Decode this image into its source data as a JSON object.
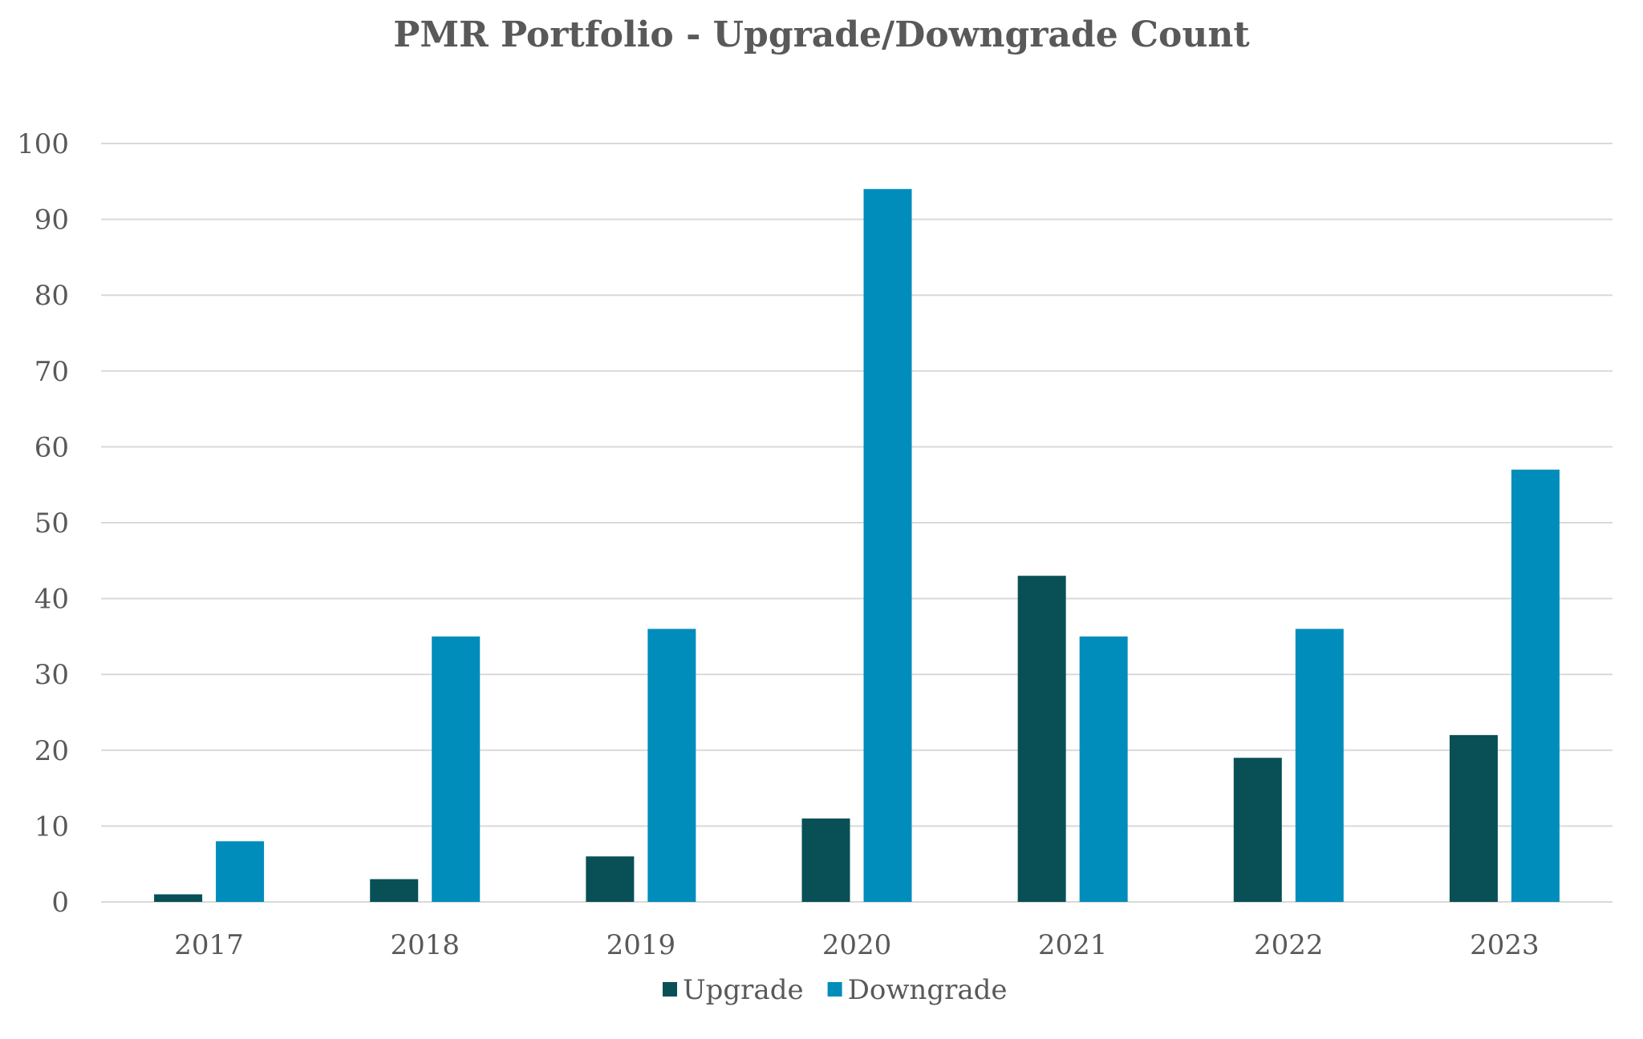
{
  "chart_data": {
    "type": "bar",
    "title": "PMR Portfolio - Upgrade/Downgrade Count",
    "xlabel": "",
    "ylabel": "",
    "categories": [
      "2017",
      "2018",
      "2019",
      "2020",
      "2021",
      "2022",
      "2023"
    ],
    "series": [
      {
        "name": "Upgrade",
        "color": "#085056",
        "values": [
          1,
          3,
          6,
          11,
          43,
          19,
          22
        ]
      },
      {
        "name": "Downgrade",
        "color": "#008DBC",
        "values": [
          8,
          35,
          36,
          94,
          35,
          36,
          57
        ]
      }
    ],
    "ylim": [
      0,
      100
    ],
    "yticks": [
      0,
      10,
      20,
      30,
      40,
      50,
      60,
      70,
      80,
      90,
      100
    ],
    "grid": true,
    "gridline_color": "#D9D9D9",
    "legend_position": "bottom"
  }
}
